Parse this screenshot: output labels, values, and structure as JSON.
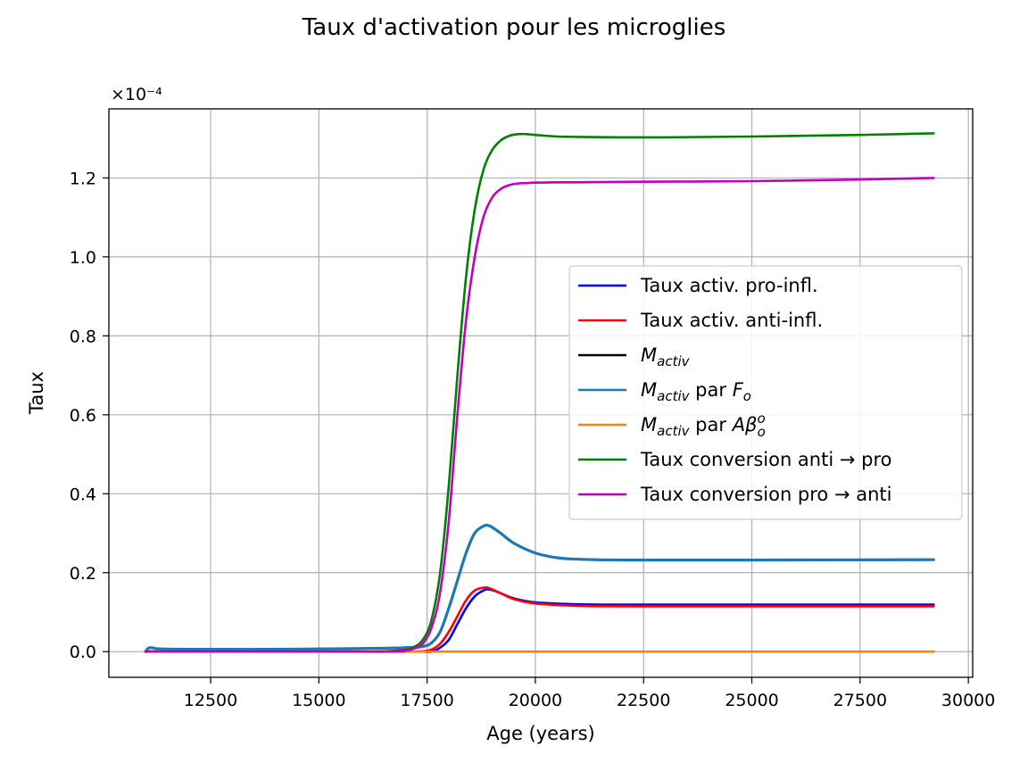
{
  "chart_data": {
    "type": "line",
    "title": "Taux d'activation pour les microglies",
    "xlabel": "Age (years)",
    "ylabel": "Taux",
    "y_multiplier_label": "×10⁻⁴",
    "xlim": [
      10150,
      30100
    ],
    "ylim": [
      -0.065,
      1.375
    ],
    "xticks": [
      12500,
      15000,
      17500,
      20000,
      22500,
      25000,
      27500,
      30000
    ],
    "yticks": [
      0.0,
      0.2,
      0.4,
      0.6,
      0.8,
      1.0,
      1.2
    ],
    "ytick_labels": [
      "0.0",
      "0.2",
      "0.4",
      "0.6",
      "0.8",
      "1.0",
      "1.2"
    ],
    "grid": true,
    "legend_position": "center-right",
    "series": [
      {
        "name": "Taux activ. pro-infl.",
        "color": "#0000ff",
        "x": [
          11000,
          11100,
          11200,
          12000,
          14000,
          16000,
          17000,
          17400,
          17600,
          17800,
          18000,
          18200,
          18400,
          18600,
          18800,
          18900,
          19000,
          19200,
          19500,
          20000,
          21000,
          22000,
          25000,
          29200
        ],
        "y": [
          0.0,
          0.001,
          0.0,
          0.0,
          0.0,
          0.0,
          0.0,
          0.0,
          0.0,
          0.01,
          0.03,
          0.07,
          0.11,
          0.14,
          0.155,
          0.158,
          0.156,
          0.148,
          0.135,
          0.125,
          0.12,
          0.119,
          0.119,
          0.119
        ]
      },
      {
        "name": "Taux activ. anti-infl.",
        "color": "#ff0000",
        "x": [
          11000,
          11100,
          11200,
          12000,
          14000,
          16000,
          17000,
          17400,
          17600,
          17800,
          18000,
          18200,
          18400,
          18600,
          18800,
          18900,
          19000,
          19200,
          19500,
          20000,
          21000,
          22000,
          25000,
          29200
        ],
        "y": [
          0.0,
          0.001,
          0.0,
          0.0,
          0.0,
          0.0,
          0.0,
          0.001,
          0.005,
          0.02,
          0.05,
          0.09,
          0.13,
          0.155,
          0.162,
          0.162,
          0.158,
          0.148,
          0.133,
          0.122,
          0.116,
          0.115,
          0.115,
          0.115
        ]
      },
      {
        "name": "M_activ",
        "color": "#000000",
        "x": [
          11000,
          11050,
          11150,
          11300,
          12000,
          14000,
          16000,
          17000,
          17400,
          17600,
          17800,
          18000,
          18200,
          18400,
          18600,
          18800,
          18900,
          19000,
          19200,
          19500,
          20000,
          20500,
          21000,
          22000,
          25000,
          29200
        ],
        "y": [
          0.0,
          0.008,
          0.01,
          0.007,
          0.006,
          0.006,
          0.008,
          0.01,
          0.013,
          0.022,
          0.05,
          0.11,
          0.18,
          0.25,
          0.3,
          0.318,
          0.32,
          0.315,
          0.3,
          0.275,
          0.25,
          0.238,
          0.234,
          0.232,
          0.232,
          0.233
        ]
      },
      {
        "name": "M_activ par F_o",
        "color": "#1f77b4",
        "x": [
          11000,
          11050,
          11150,
          11300,
          12000,
          14000,
          16000,
          17000,
          17400,
          17600,
          17800,
          18000,
          18200,
          18400,
          18600,
          18800,
          18900,
          19000,
          19200,
          19500,
          20000,
          20500,
          21000,
          22000,
          25000,
          29200
        ],
        "y": [
          0.0,
          0.008,
          0.01,
          0.007,
          0.006,
          0.006,
          0.008,
          0.01,
          0.013,
          0.022,
          0.05,
          0.11,
          0.18,
          0.25,
          0.3,
          0.318,
          0.32,
          0.315,
          0.3,
          0.275,
          0.25,
          0.238,
          0.234,
          0.232,
          0.232,
          0.233
        ]
      },
      {
        "name": "M_activ par Aβ_o^o",
        "color": "#ff7f0e",
        "x": [
          17000,
          29200
        ],
        "y": [
          0.0,
          0.0
        ]
      },
      {
        "name": "Taux conversion anti → pro",
        "color": "#008000",
        "x": [
          11000,
          12000,
          14000,
          16000,
          16500,
          17000,
          17200,
          17400,
          17600,
          17800,
          18000,
          18200,
          18400,
          18600,
          18800,
          19000,
          19200,
          19400,
          19600,
          19800,
          20000,
          20500,
          21000,
          22000,
          23000,
          25000,
          27500,
          29200
        ],
        "y": [
          0.0,
          0.0,
          0.0,
          0.0,
          0.001,
          0.005,
          0.012,
          0.03,
          0.08,
          0.2,
          0.42,
          0.7,
          0.95,
          1.12,
          1.22,
          1.27,
          1.295,
          1.307,
          1.311,
          1.311,
          1.309,
          1.305,
          1.304,
          1.303,
          1.303,
          1.305,
          1.309,
          1.313
        ]
      },
      {
        "name": "Taux conversion pro → anti",
        "color": "#bf00bf",
        "x": [
          11000,
          12000,
          14000,
          16000,
          16500,
          17000,
          17200,
          17400,
          17600,
          17800,
          18000,
          18200,
          18400,
          18600,
          18800,
          19000,
          19200,
          19400,
          19600,
          19800,
          20000,
          20500,
          21000,
          22000,
          25000,
          27500,
          29200
        ],
        "y": [
          0.0,
          0.0,
          0.0,
          0.0,
          0.0,
          0.003,
          0.008,
          0.02,
          0.06,
          0.15,
          0.33,
          0.6,
          0.84,
          1.0,
          1.1,
          1.15,
          1.172,
          1.182,
          1.186,
          1.187,
          1.188,
          1.189,
          1.189,
          1.19,
          1.192,
          1.196,
          1.2
        ]
      }
    ],
    "legend": [
      {
        "color": "#0000ff",
        "parts": [
          [
            "t",
            "Taux activ. pro-infl."
          ]
        ]
      },
      {
        "color": "#ff0000",
        "parts": [
          [
            "t",
            "Taux activ. anti-infl."
          ]
        ]
      },
      {
        "color": "#000000",
        "parts": [
          [
            "i",
            "M"
          ],
          [
            "is",
            "activ"
          ]
        ]
      },
      {
        "color": "#1f77b4",
        "parts": [
          [
            "i",
            "M"
          ],
          [
            "is",
            "activ"
          ],
          [
            "t",
            " par "
          ],
          [
            "i",
            "F"
          ],
          [
            "is",
            "o"
          ]
        ]
      },
      {
        "color": "#ff7f0e",
        "parts": [
          [
            "i",
            "M"
          ],
          [
            "is",
            "activ"
          ],
          [
            "t",
            " par "
          ],
          [
            "i",
            "Aβ"
          ],
          [
            "isup",
            "o"
          ],
          [
            "isb",
            "o"
          ]
        ]
      },
      {
        "color": "#008000",
        "parts": [
          [
            "t",
            "Taux conversion anti → pro"
          ]
        ]
      },
      {
        "color": "#bf00bf",
        "parts": [
          [
            "t",
            "Taux conversion pro → anti"
          ]
        ]
      }
    ]
  }
}
